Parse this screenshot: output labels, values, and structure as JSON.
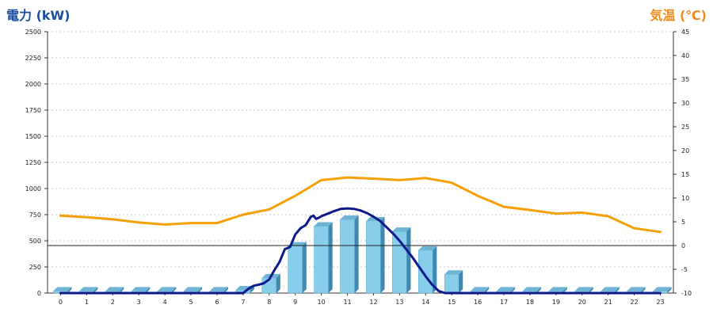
{
  "chart_data": {
    "type": "bar+line",
    "left_axis": {
      "title": "電力 (kW)",
      "min": 0,
      "max": 2500,
      "step": 250
    },
    "right_axis": {
      "title": "気温 (℃)",
      "min": -10,
      "max": 45,
      "step": 5
    },
    "categories": [
      "0",
      "1",
      "2",
      "3",
      "4",
      "5",
      "6",
      "7",
      "8",
      "9",
      "10",
      "11",
      "12",
      "13",
      "14",
      "15",
      "16",
      "17",
      "18",
      "19",
      "20",
      "21",
      "22",
      "23"
    ],
    "grid": "horizontal dashed",
    "series": [
      {
        "kind": "bar",
        "axis": "left",
        "values": [
          20,
          20,
          20,
          20,
          20,
          20,
          20,
          30,
          145,
          450,
          640,
          705,
          690,
          590,
          410,
          180,
          20,
          20,
          20,
          20,
          20,
          20,
          20,
          20
        ],
        "color": "#87ceeb"
      },
      {
        "kind": "line",
        "axis": "left",
        "color": "#f5a000",
        "x": [
          0,
          1,
          2,
          3,
          4,
          5,
          6,
          7,
          8,
          9,
          10,
          11,
          12,
          13,
          14,
          15,
          16,
          17,
          18,
          19,
          20,
          21,
          22,
          23
        ],
        "values": [
          740,
          725,
          705,
          675,
          655,
          670,
          670,
          750,
          800,
          930,
          1080,
          1105,
          1095,
          1080,
          1100,
          1055,
          930,
          825,
          795,
          760,
          770,
          735,
          620,
          585
        ]
      },
      {
        "kind": "line",
        "axis": "left",
        "color": "#0d1a8c",
        "x": [
          7.0,
          7.2,
          7.4,
          7.6,
          7.8,
          8.0,
          8.2,
          8.4,
          8.6,
          8.8,
          9.0,
          9.2,
          9.4,
          9.6,
          9.7,
          9.8,
          9.9,
          10.0,
          10.25,
          10.5,
          10.75,
          11.0,
          11.25,
          11.5,
          11.75,
          12.0,
          12.25,
          12.5,
          12.75,
          13.0,
          13.25,
          13.5,
          13.75,
          14.0,
          14.25,
          14.5,
          14.75,
          15.0,
          15.25,
          15.5,
          15.75,
          16.0,
          16.5,
          17,
          18,
          19,
          20,
          21,
          22,
          23
        ],
        "values": [
          0,
          40,
          70,
          80,
          95,
          130,
          220,
          300,
          420,
          440,
          560,
          620,
          650,
          730,
          740,
          710,
          720,
          735,
          760,
          785,
          805,
          810,
          805,
          790,
          765,
          730,
          690,
          630,
          570,
          500,
          420,
          340,
          250,
          160,
          80,
          20,
          0,
          0,
          0,
          0,
          0,
          0,
          0,
          0,
          0,
          0,
          0,
          0,
          0,
          0
        ],
        "start": [
          [
            0,
            0
          ],
          [
            7,
            0
          ]
        ]
      }
    ],
    "reference_line": {
      "axis": "right",
      "value": 0
    }
  }
}
